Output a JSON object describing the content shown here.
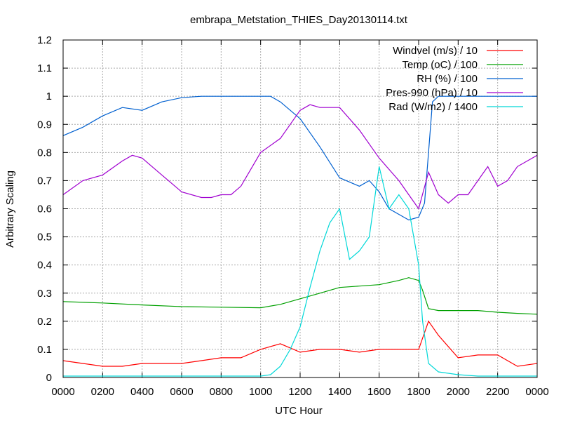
{
  "chart_data": {
    "type": "line",
    "title": "embrapa_Metstation_THIES_Day20130114.txt",
    "xlabel": "UTC Hour",
    "ylabel": "Arbitrary Scaling",
    "xlim": [
      0,
      2400
    ],
    "ylim": [
      0,
      1.2
    ],
    "grid": true,
    "legend_position": "top-right",
    "x_ticks": [
      "0000",
      "0200",
      "0400",
      "0600",
      "0800",
      "1000",
      "1200",
      "1400",
      "1600",
      "1800",
      "2000",
      "2200",
      "0000"
    ],
    "y_ticks": [
      "0",
      "0.1",
      "0.2",
      "0.3",
      "0.4",
      "0.5",
      "0.6",
      "0.7",
      "0.8",
      "0.9",
      "1",
      "1.1",
      "1.2"
    ],
    "series": [
      {
        "name": "Windvel (m/s) / 10",
        "color": "#ff0000",
        "x": [
          0,
          100,
          200,
          300,
          400,
          500,
          600,
          700,
          800,
          900,
          1000,
          1100,
          1200,
          1300,
          1400,
          1500,
          1600,
          1700,
          1800,
          1850,
          1900,
          2000,
          2100,
          2200,
          2300,
          2400
        ],
        "y": [
          0.06,
          0.05,
          0.04,
          0.04,
          0.05,
          0.05,
          0.05,
          0.06,
          0.07,
          0.07,
          0.1,
          0.12,
          0.09,
          0.1,
          0.1,
          0.09,
          0.1,
          0.1,
          0.1,
          0.2,
          0.15,
          0.07,
          0.08,
          0.08,
          0.04,
          0.05
        ]
      },
      {
        "name": "Temp (oC) / 100",
        "color": "#00a000",
        "x": [
          0,
          200,
          400,
          600,
          800,
          1000,
          1100,
          1200,
          1300,
          1400,
          1500,
          1600,
          1700,
          1750,
          1800,
          1820,
          1850,
          1900,
          2000,
          2100,
          2200,
          2300,
          2400
        ],
        "y": [
          0.27,
          0.265,
          0.258,
          0.252,
          0.25,
          0.248,
          0.26,
          0.28,
          0.3,
          0.32,
          0.325,
          0.33,
          0.345,
          0.355,
          0.345,
          0.31,
          0.245,
          0.238,
          0.238,
          0.238,
          0.232,
          0.228,
          0.225
        ]
      },
      {
        "name": "RH (%) / 100",
        "color": "#0060d0",
        "x": [
          0,
          100,
          150,
          200,
          300,
          400,
          500,
          600,
          700,
          800,
          900,
          1000,
          1050,
          1100,
          1200,
          1300,
          1400,
          1500,
          1550,
          1600,
          1650,
          1700,
          1750,
          1800,
          1830,
          1850,
          1870,
          1900,
          2000,
          2100,
          2200,
          2300,
          2400
        ],
        "y": [
          0.86,
          0.89,
          0.91,
          0.93,
          0.96,
          0.95,
          0.98,
          0.995,
          1.0,
          1.0,
          1.0,
          1.0,
          1.0,
          0.98,
          0.92,
          0.82,
          0.71,
          0.68,
          0.7,
          0.66,
          0.6,
          0.58,
          0.56,
          0.57,
          0.62,
          0.8,
          0.98,
          1.0,
          1.0,
          1.0,
          1.0,
          1.0,
          1.0
        ]
      },
      {
        "name": "Pres-990 (hPa) / 10",
        "color": "#a000d0",
        "x": [
          0,
          100,
          200,
          300,
          350,
          400,
          450,
          500,
          600,
          700,
          750,
          800,
          850,
          900,
          1000,
          1100,
          1200,
          1250,
          1300,
          1400,
          1500,
          1600,
          1700,
          1750,
          1800,
          1850,
          1900,
          1950,
          2000,
          2050,
          2100,
          2150,
          2200,
          2250,
          2300,
          2350,
          2400
        ],
        "y": [
          0.65,
          0.7,
          0.72,
          0.77,
          0.79,
          0.78,
          0.75,
          0.72,
          0.66,
          0.64,
          0.64,
          0.65,
          0.65,
          0.68,
          0.8,
          0.85,
          0.95,
          0.97,
          0.96,
          0.96,
          0.88,
          0.78,
          0.7,
          0.65,
          0.6,
          0.73,
          0.65,
          0.62,
          0.65,
          0.65,
          0.7,
          0.75,
          0.68,
          0.7,
          0.75,
          0.77,
          0.79
        ]
      },
      {
        "name": "Rad (W/m2) / 1400",
        "color": "#00d8d8",
        "x": [
          0,
          200,
          400,
          600,
          800,
          1000,
          1050,
          1100,
          1150,
          1200,
          1250,
          1300,
          1350,
          1400,
          1450,
          1500,
          1550,
          1600,
          1650,
          1700,
          1750,
          1800,
          1820,
          1850,
          1900,
          2000,
          2100,
          2200,
          2300,
          2400
        ],
        "y": [
          0.005,
          0.005,
          0.005,
          0.005,
          0.005,
          0.005,
          0.01,
          0.04,
          0.1,
          0.18,
          0.32,
          0.45,
          0.55,
          0.6,
          0.42,
          0.45,
          0.5,
          0.75,
          0.6,
          0.65,
          0.6,
          0.4,
          0.2,
          0.05,
          0.02,
          0.01,
          0.005,
          0.005,
          0.005,
          0.005
        ]
      }
    ]
  }
}
